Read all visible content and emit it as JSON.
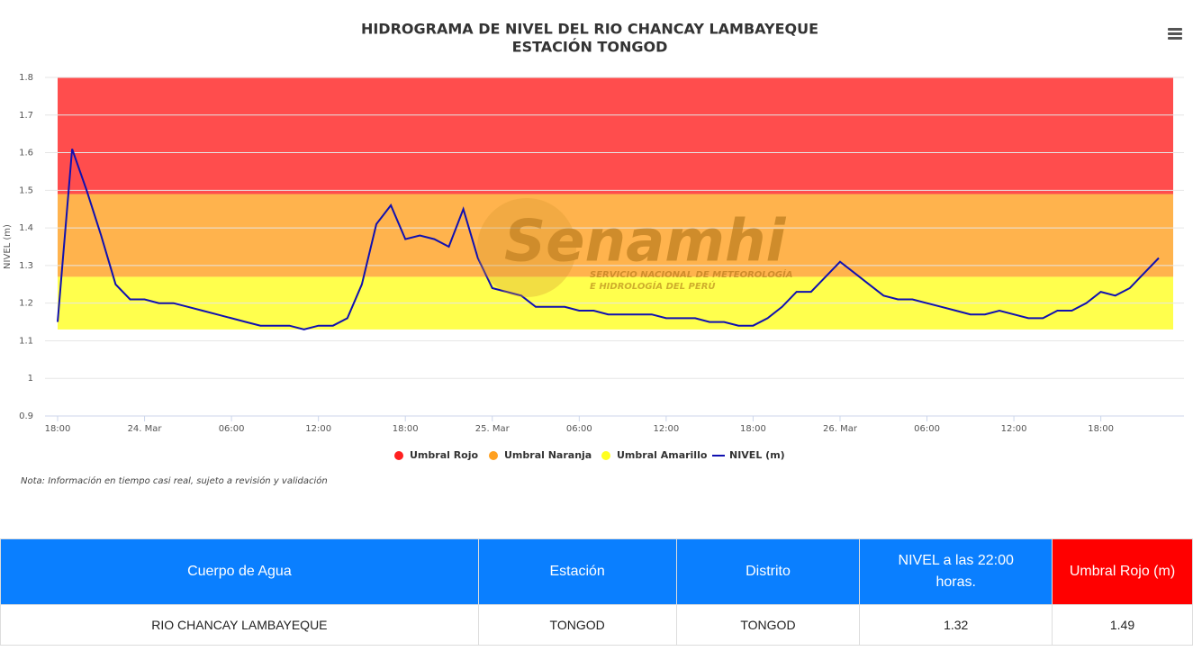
{
  "chart_data": {
    "type": "line",
    "title": "HIDROGRAMA DE NIVEL DEL RIO CHANCAY LAMBAYEQUE",
    "subtitle": "ESTACIÓN TONGOD",
    "y_label": "NIVEL (m)",
    "note": "Nota: Información en tiempo casi real, sujeto a revisión y validación",
    "watermark": {
      "name": "Senamhi",
      "line1": "SERVICIO NACIONAL DE METEOROLOGÍA",
      "line2": "E HIDROLOGÍA DEL PERÚ"
    },
    "categories": [
      "18:00",
      null,
      null,
      null,
      null,
      null,
      "24. Mar",
      null,
      null,
      null,
      null,
      null,
      "06:00",
      null,
      null,
      null,
      null,
      null,
      "12:00",
      null,
      null,
      null,
      null,
      null,
      "18:00",
      null,
      null,
      null,
      null,
      null,
      "25. Mar",
      null,
      null,
      null,
      null,
      null,
      "06:00",
      null,
      null,
      null,
      null,
      null,
      "12:00",
      null,
      null,
      null,
      null,
      null,
      "18:00",
      null,
      null,
      null,
      null,
      null,
      "26. Mar",
      null,
      null,
      null,
      null,
      null,
      "06:00",
      null,
      null,
      null,
      null,
      null,
      "12:00",
      null,
      null,
      null,
      null,
      null,
      "18:00",
      null,
      null,
      null,
      null
    ],
    "series": [
      {
        "name": "NIVEL (m)",
        "color": "#1010b0",
        "values": [
          1.15,
          1.61,
          1.5,
          1.38,
          1.25,
          1.21,
          1.21,
          1.2,
          1.2,
          1.19,
          1.18,
          1.17,
          1.16,
          1.15,
          1.14,
          1.14,
          1.14,
          1.13,
          1.14,
          1.14,
          1.16,
          1.25,
          1.41,
          1.46,
          1.37,
          1.38,
          1.37,
          1.35,
          1.45,
          1.32,
          1.24,
          1.23,
          1.22,
          1.19,
          1.19,
          1.19,
          1.18,
          1.18,
          1.17,
          1.17,
          1.17,
          1.17,
          1.16,
          1.16,
          1.16,
          1.15,
          1.15,
          1.14,
          1.14,
          1.16,
          1.19,
          1.23,
          1.23,
          1.27,
          1.31,
          1.28,
          1.25,
          1.22,
          1.21,
          1.21,
          1.2,
          1.19,
          1.18,
          1.17,
          1.17,
          1.18,
          1.17,
          1.16,
          1.16,
          1.18,
          1.18,
          1.2,
          1.23,
          1.22,
          1.24,
          1.28,
          1.32
        ]
      }
    ],
    "bands": [
      {
        "name": "Umbral Rojo",
        "color": "#ff2020",
        "from": 1.49,
        "to": 1.8
      },
      {
        "name": "Umbral Naranja",
        "color": "#ffa020",
        "from": 1.27,
        "to": 1.49
      },
      {
        "name": "Umbral Amarillo",
        "color": "#ffff20",
        "from": 1.13,
        "to": 1.27
      }
    ],
    "ylim": [
      0.9,
      1.8
    ],
    "yticks": [
      0.9,
      1,
      1.1,
      1.2,
      1.3,
      1.4,
      1.5,
      1.6,
      1.7,
      1.8
    ],
    "grid": true
  },
  "table": {
    "header": [
      "Cuerpo de Agua",
      "Estación",
      "Distrito",
      "NIVEL a las 22:00 horas.",
      "Umbral Rojo (m)"
    ],
    "rows": [
      [
        "RIO CHANCAY LAMBAYEQUE",
        "TONGOD",
        "TONGOD",
        "1.32",
        "1.49"
      ]
    ]
  }
}
